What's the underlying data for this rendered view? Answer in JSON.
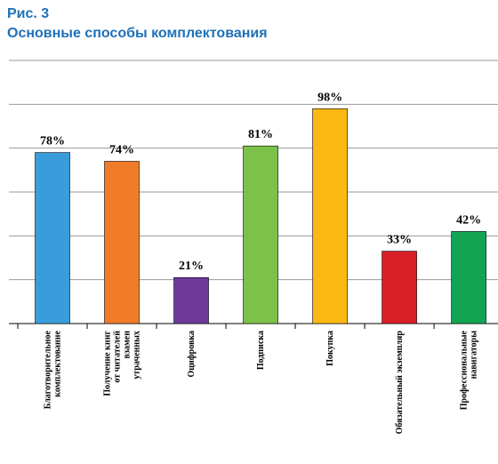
{
  "figure": {
    "number": "Рис. 3",
    "title": "Основные способы комплектования"
  },
  "chart_data": {
    "type": "bar",
    "categories": [
      [
        "Благотворительное",
        "комплектование"
      ],
      [
        "Получение книг",
        "от читателей",
        "взамен",
        "утраченных"
      ],
      [
        "Оцифровка"
      ],
      [
        "Подписка"
      ],
      [
        "Покупка"
      ],
      [
        "Обязательный экземпляр"
      ],
      [
        "Профессиональные",
        "навигаторы"
      ]
    ],
    "values": [
      78,
      74,
      21,
      81,
      98,
      33,
      42
    ],
    "value_labels": [
      "78%",
      "74%",
      "21%",
      "81%",
      "98%",
      "33%",
      "42%"
    ],
    "colors": [
      "#3a9ddb",
      "#f07c2a",
      "#6e3b9b",
      "#7cc24a",
      "#fbb813",
      "#d81f26",
      "#12a452"
    ],
    "ylim": [
      0,
      120
    ],
    "gridlines": [
      20,
      40,
      60,
      80,
      100,
      120
    ],
    "grid": true,
    "grid_color": "#999999",
    "xlabel": "",
    "ylabel": ""
  }
}
